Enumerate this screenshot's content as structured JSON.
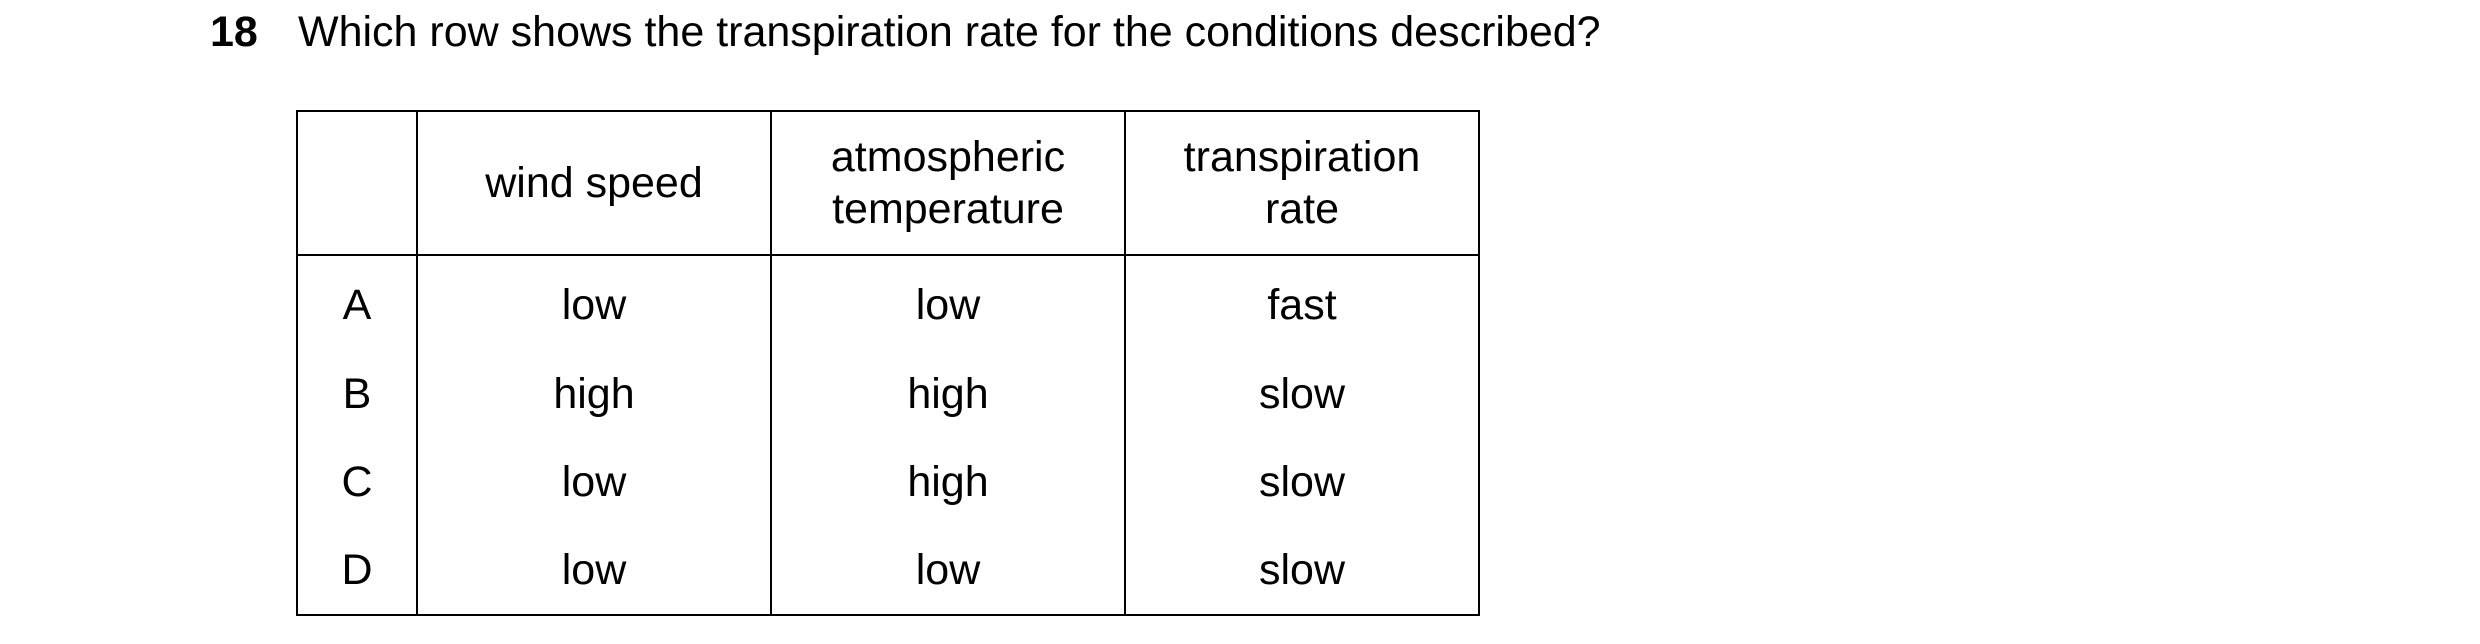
{
  "question": {
    "number": "18",
    "text": "Which row shows the transpiration rate for the conditions described?"
  },
  "table": {
    "headers": {
      "key": "",
      "col1_line1": "wind speed",
      "col2_line1": "atmospheric",
      "col2_line2": "temperature",
      "col3_line1": "transpiration",
      "col3_line2": "rate"
    },
    "rows": [
      {
        "key": "A",
        "wind_speed": "low",
        "atmospheric_temperature": "low",
        "transpiration_rate": "fast"
      },
      {
        "key": "B",
        "wind_speed": "high",
        "atmospheric_temperature": "high",
        "transpiration_rate": "slow"
      },
      {
        "key": "C",
        "wind_speed": "low",
        "atmospheric_temperature": "high",
        "transpiration_rate": "slow"
      },
      {
        "key": "D",
        "wind_speed": "low",
        "atmospheric_temperature": "low",
        "transpiration_rate": "slow"
      }
    ]
  }
}
